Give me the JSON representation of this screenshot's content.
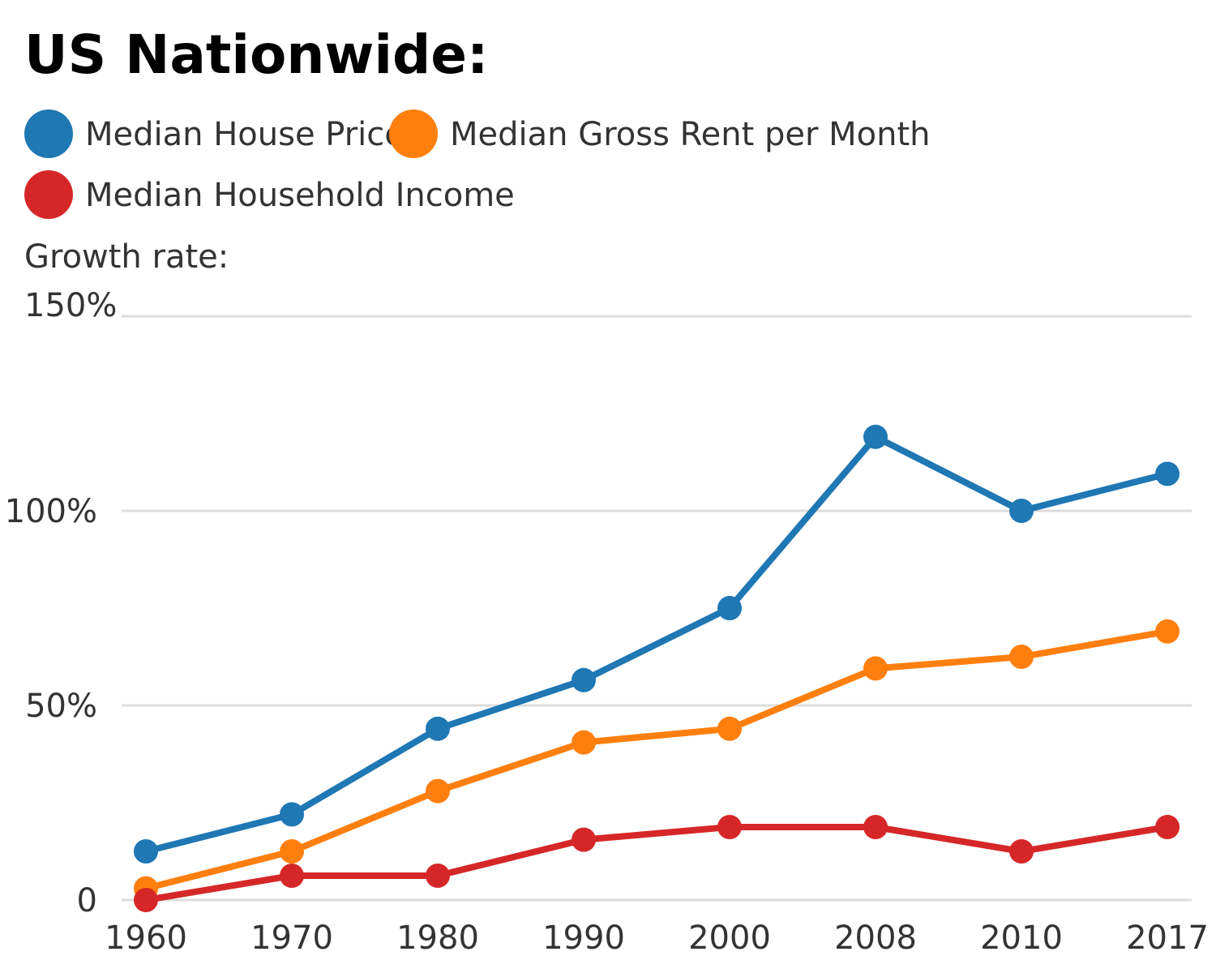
{
  "chart_data": {
    "type": "line",
    "title": "US Nationwide:",
    "ylabel": "Growth rate:",
    "xlabel": "",
    "categories": [
      "1960",
      "1970",
      "1980",
      "1990",
      "2000",
      "2008",
      "2010",
      "2017"
    ],
    "ylim": [
      0,
      150
    ],
    "yticks": [
      {
        "value": 0,
        "label": "0"
      },
      {
        "value": 50,
        "label": "50%"
      },
      {
        "value": 100,
        "label": "100%"
      },
      {
        "value": 150,
        "label": "150%"
      }
    ],
    "grid": true,
    "legend_position": "top-left",
    "series": [
      {
        "name": "Median House Price",
        "color": "#1f77b4",
        "values": [
          12.5,
          22,
          44,
          56.5,
          75,
          119,
          100,
          109.5
        ]
      },
      {
        "name": "Median Gross Rent per Month",
        "color": "#ff7f0e",
        "values": [
          3,
          12.5,
          28,
          40.5,
          44,
          59.5,
          62.5,
          69
        ]
      },
      {
        "name": "Median Household Income",
        "color": "#d62728",
        "values": [
          0,
          6.25,
          6.25,
          15.5,
          18.75,
          18.75,
          12.5,
          18.75
        ]
      }
    ]
  }
}
